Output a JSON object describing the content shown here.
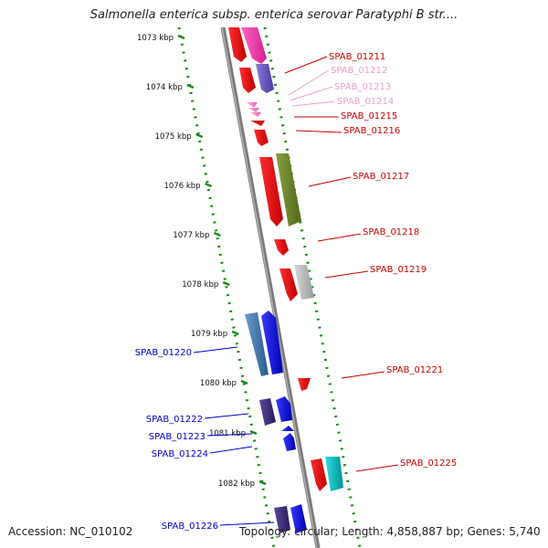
{
  "title": "Salmonella enterica subsp. enterica serovar Paratyphi B str....",
  "footer": {
    "accession": "Accession: NC_010102",
    "stats": "Topology: circular; Length: 4,858,887 bp; Genes: 5,740"
  },
  "colors": {
    "ticks": "#1a8a1a",
    "backbone": "#8a8a8a",
    "label_red": "#cc0000",
    "label_pink": "#e070b0",
    "label_blue": "#0000cc"
  },
  "kbp_ticks": [
    "1073 kbp",
    "1074 kbp",
    "1075 kbp",
    "1076 kbp",
    "1077 kbp",
    "1078 kbp",
    "1079 kbp",
    "1080 kbp",
    "1081 kbp",
    "1082 kbp"
  ],
  "gene_labels_right": [
    {
      "text": "SPAB_01211",
      "color": "#cc0000"
    },
    {
      "text": "SPAB_01212",
      "color": "#e8a0d0"
    },
    {
      "text": "SPAB_01213",
      "color": "#e8a0d0"
    },
    {
      "text": "SPAB_01214",
      "color": "#e8a0d0"
    },
    {
      "text": "SPAB_01215",
      "color": "#cc0000"
    },
    {
      "text": "SPAB_01216",
      "color": "#cc0000"
    },
    {
      "text": "SPAB_01217",
      "color": "#cc0000"
    },
    {
      "text": "SPAB_01218",
      "color": "#cc0000"
    },
    {
      "text": "SPAB_01219",
      "color": "#cc0000"
    },
    {
      "text": "SPAB_01221",
      "color": "#cc0000"
    },
    {
      "text": "SPAB_01225",
      "color": "#cc0000"
    }
  ],
  "gene_labels_left": [
    {
      "text": "SPAB_01220",
      "color": "#0000cc"
    },
    {
      "text": "SPAB_01222",
      "color": "#0000cc"
    },
    {
      "text": "SPAB_01223",
      "color": "#0000cc"
    },
    {
      "text": "SPAB_01224",
      "color": "#0000cc"
    },
    {
      "text": "SPAB_01226",
      "color": "#0000cc"
    }
  ]
}
